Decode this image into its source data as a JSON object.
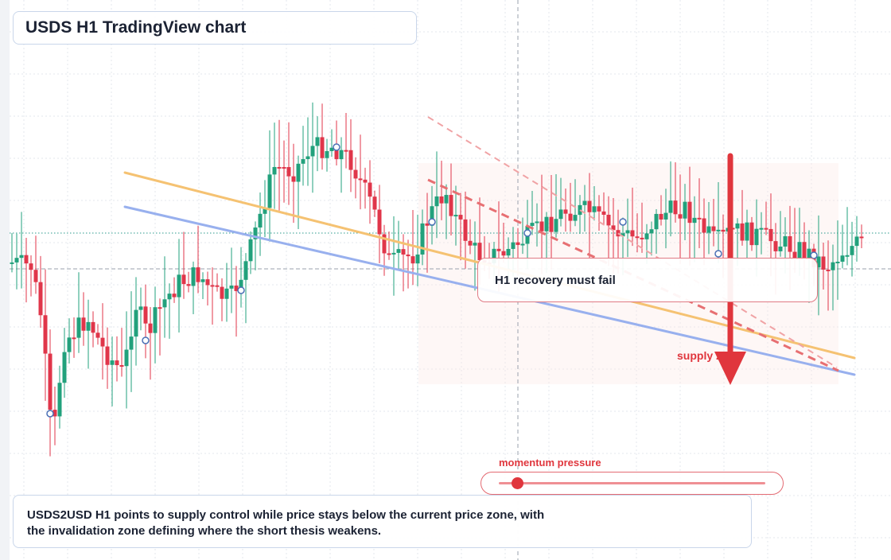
{
  "header": {
    "title": "USDS H1 TradingView chart"
  },
  "callout": {
    "text": "H1 recovery must fail"
  },
  "arrow": {
    "label": "supply zone",
    "direction": "down",
    "color": "#e0363d"
  },
  "momentum": {
    "label": "momentum pressure",
    "level": 0.07
  },
  "summary": {
    "line1": "USDS2USD H1 points to supply control while price stays below the current price zone, with",
    "line2": "the invalidation zone defining where the short thesis weakens."
  },
  "colors": {
    "bullish": "#22a17c",
    "bearish": "#e0364a",
    "trendline_orange": "#f5c272",
    "trendline_blue": "#98b0ee",
    "trendline_red_dashed": "#e76f72",
    "accent": "#e0363d"
  },
  "icons": [
    "down-arrow-icon",
    "slider-knob-icon"
  ]
}
